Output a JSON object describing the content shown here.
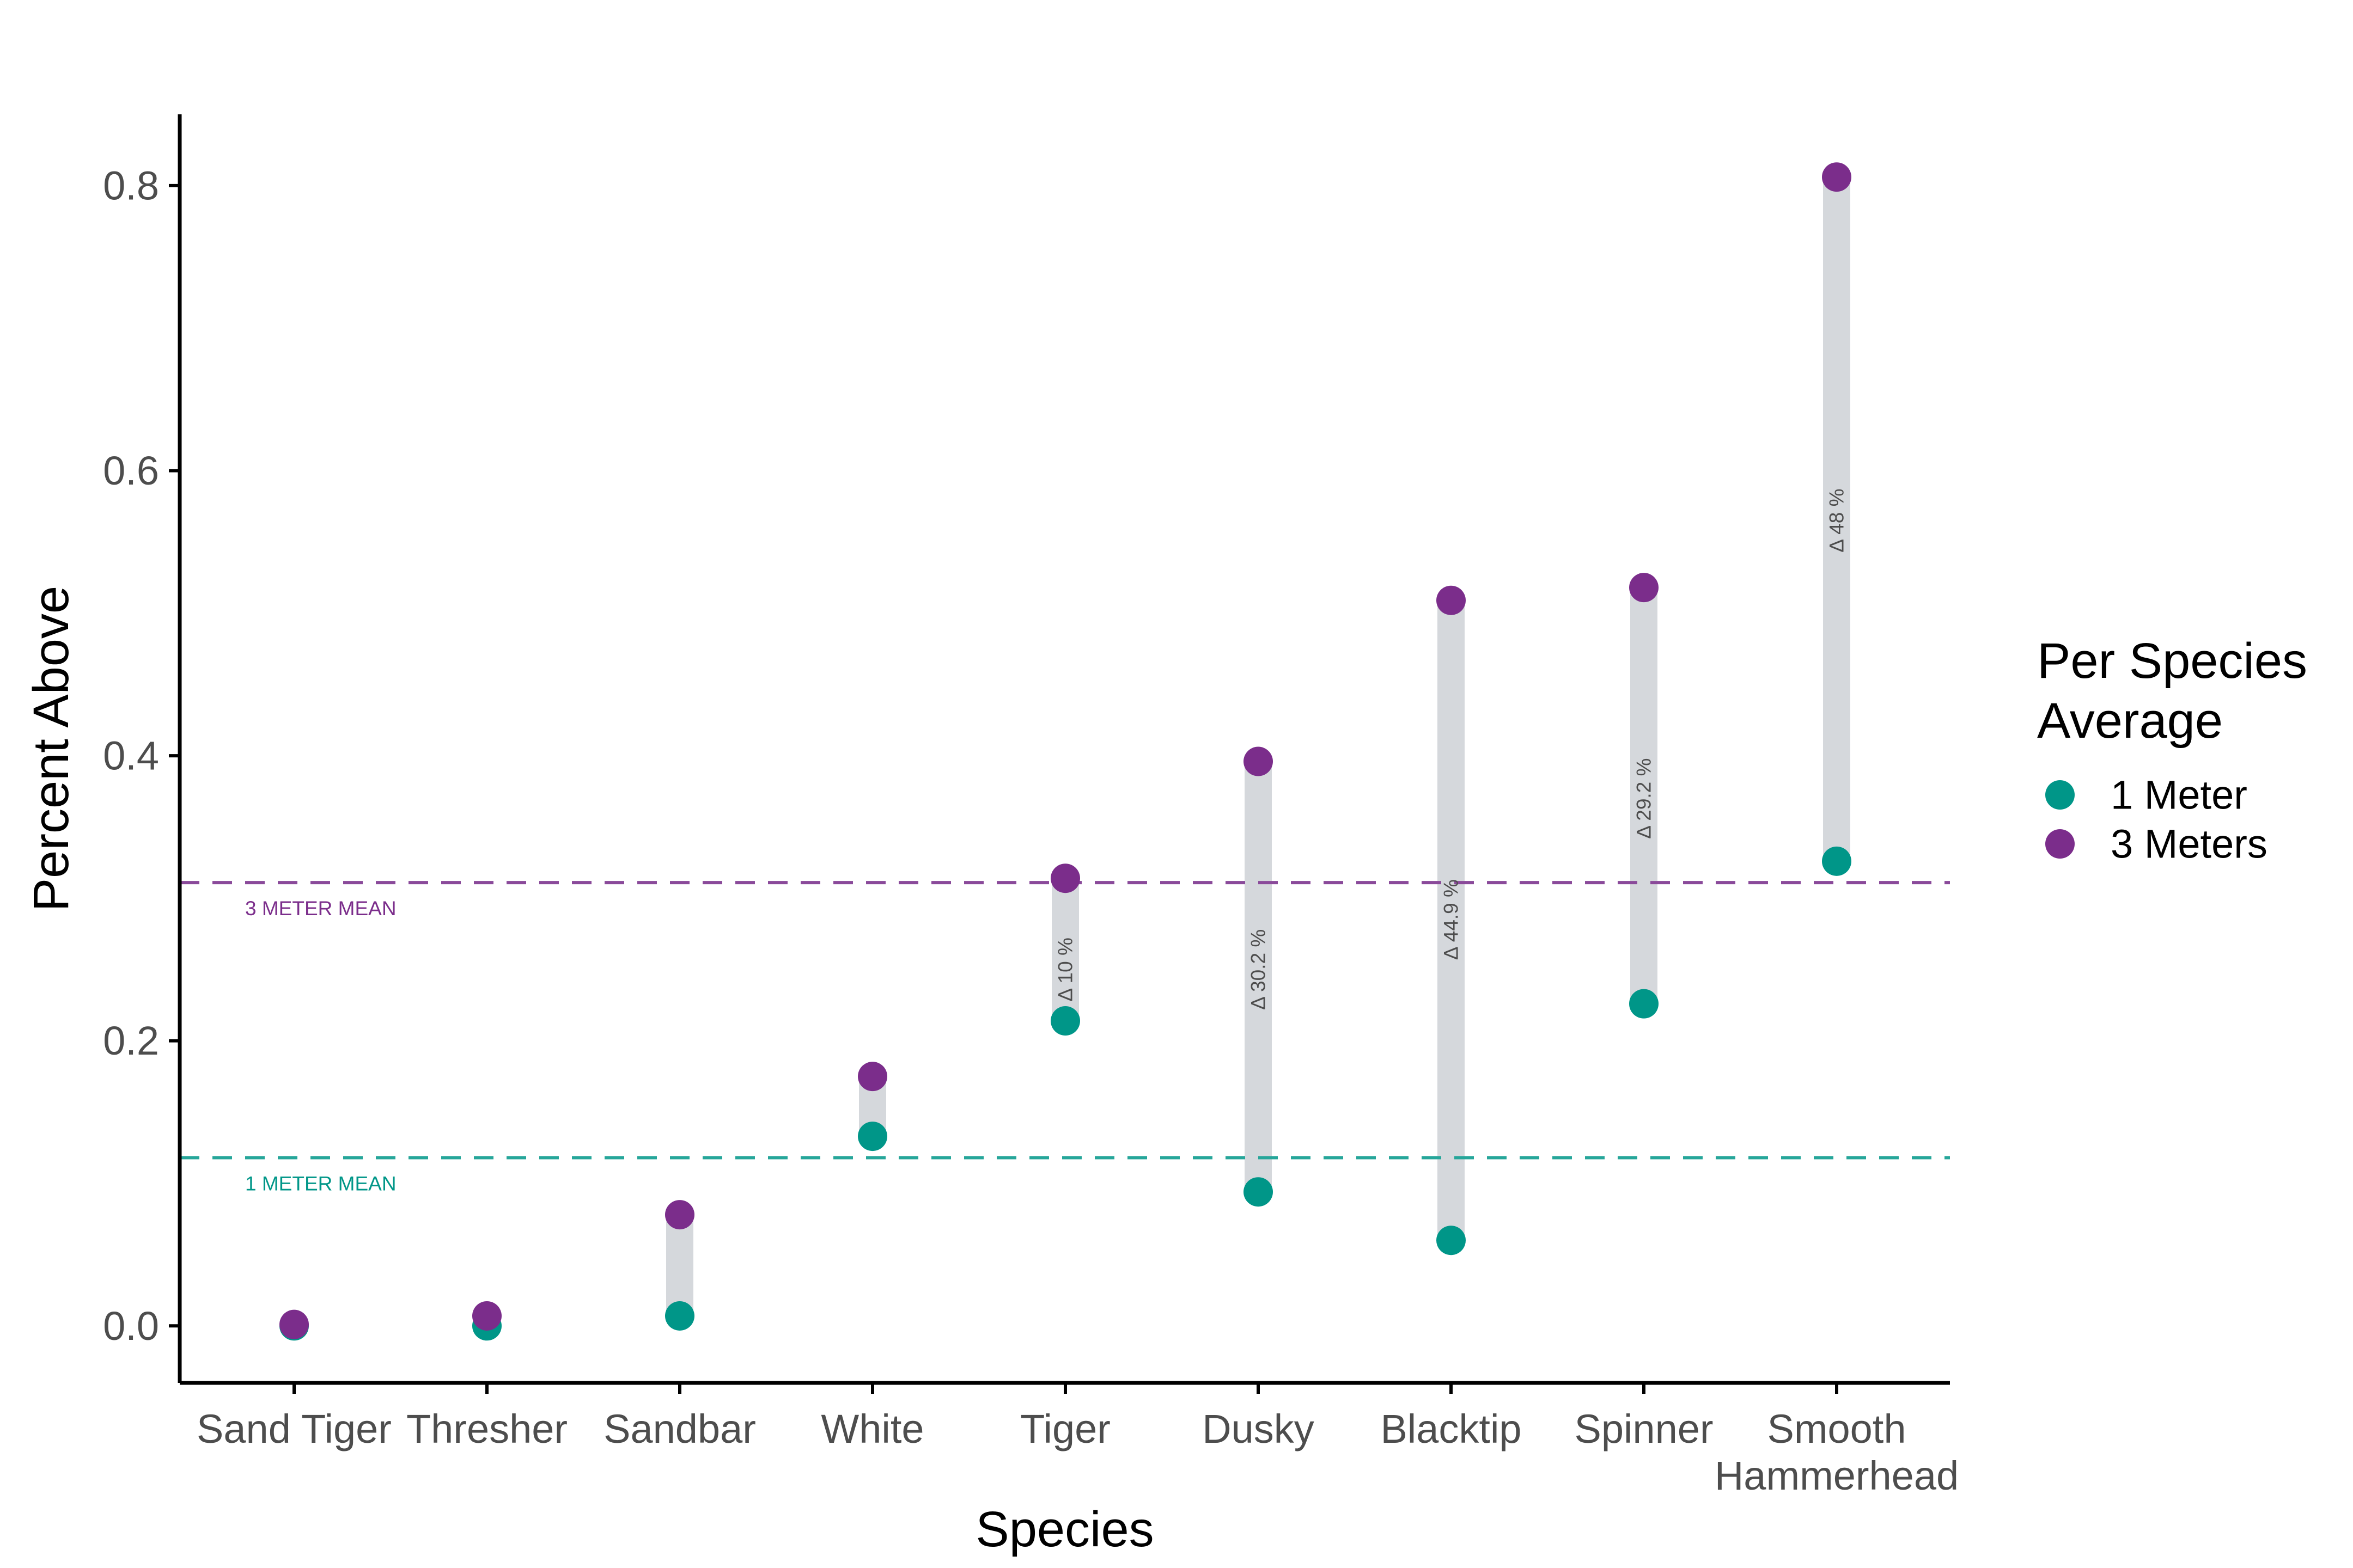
{
  "chart_data": {
    "type": "scatter",
    "subtype": "dumbbell",
    "xlabel": "Species",
    "ylabel": "Percent Above",
    "ylim": [
      -0.04,
      0.85
    ],
    "y_ticks": [
      "0.0",
      "0.2",
      "0.4",
      "0.6",
      "0.8"
    ],
    "y_tick_values": [
      0.0,
      0.2,
      0.4,
      0.6,
      0.8
    ],
    "categories": [
      "Sand Tiger",
      "Thresher",
      "Sandbar",
      "White",
      "Tiger",
      "Dusky",
      "Blacktip",
      "Spinner",
      "Smooth\nHammerhead"
    ],
    "series": [
      {
        "name": "1 Meter",
        "color": "#009688",
        "values": [
          0.0,
          0.0,
          0.007,
          0.133,
          0.214,
          0.094,
          0.06,
          0.226,
          0.326
        ]
      },
      {
        "name": "3 Meters",
        "color": "#7b2d8b",
        "values": [
          0.001,
          0.007,
          0.078,
          0.175,
          0.314,
          0.396,
          0.509,
          0.518,
          0.806
        ]
      }
    ],
    "deltas": [
      {
        "category": "Tiger",
        "label": "Δ  10 %",
        "y": 0.25
      },
      {
        "category": "Dusky",
        "label": "Δ  30.2 %",
        "y": 0.25
      },
      {
        "category": "Blacktip",
        "label": "Δ  44.9 %",
        "y": 0.285
      },
      {
        "category": "Spinner",
        "label": "Δ  29.2 %",
        "y": 0.37
      },
      {
        "category": "Smooth\nHammerhead",
        "label": "Δ  48 %",
        "y": 0.565
      }
    ],
    "reference_lines": [
      {
        "label": "3 METER MEAN",
        "value": 0.311,
        "color": "#8a4a9a",
        "text_color": "#7b2d8b"
      },
      {
        "label": "1 METER MEAN",
        "value": 0.118,
        "color": "#26a69a",
        "text_color": "#009688"
      }
    ],
    "legend": {
      "title": "Per Species\nAverage",
      "placement": "right"
    },
    "grid": false
  }
}
